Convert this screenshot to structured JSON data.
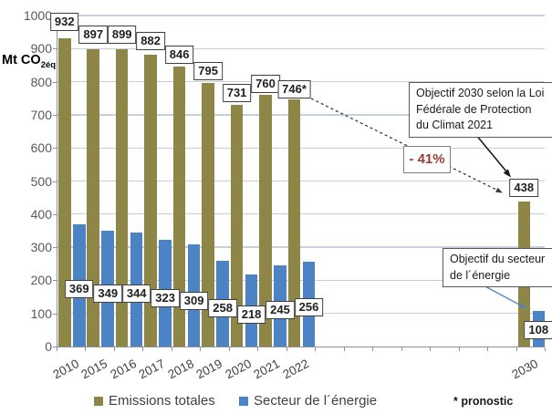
{
  "chart_data": {
    "type": "bar",
    "title": "",
    "unit_label": {
      "prefix": "Mt CO",
      "sub": "2éq"
    },
    "ylim": [
      0,
      1000
    ],
    "yticks": [
      0,
      100,
      200,
      300,
      400,
      500,
      600,
      700,
      800,
      900,
      1000
    ],
    "grid": "horizontal",
    "legend_position": "bottom",
    "categories": [
      "2010",
      "2015",
      "2016",
      "2017",
      "2018",
      "2019",
      "2020",
      "2021",
      "2022",
      "2030"
    ],
    "series": [
      {
        "name": "Emissions totales",
        "color": "#8E8646",
        "values": [
          932,
          897,
          899,
          882,
          846,
          795,
          731,
          760,
          746,
          438
        ],
        "labels": [
          "932",
          "897",
          "899",
          "882",
          "846",
          "795",
          "731",
          "760",
          "746*",
          "438"
        ]
      },
      {
        "name": "Secteur de l´énergie",
        "color": "#4C83C4",
        "values": [
          369,
          349,
          344,
          323,
          309,
          258,
          218,
          245,
          256,
          108
        ],
        "labels": [
          "369",
          "349",
          "344",
          "323",
          "309",
          "258",
          "218",
          "245",
          "256",
          "108"
        ]
      }
    ],
    "annotations": {
      "objectif_2030_lines": [
        "Objectif 2030 selon la Loi",
        "Fédérale de Protection",
        "du Climat 2021"
      ],
      "reduction_label": "- 41%",
      "reduction_color": "#9C3A38",
      "objectif_secteur_lines": [
        "Objectif du secteur",
        "de l´énergie"
      ],
      "pronostic_note": "* pronostic"
    }
  }
}
